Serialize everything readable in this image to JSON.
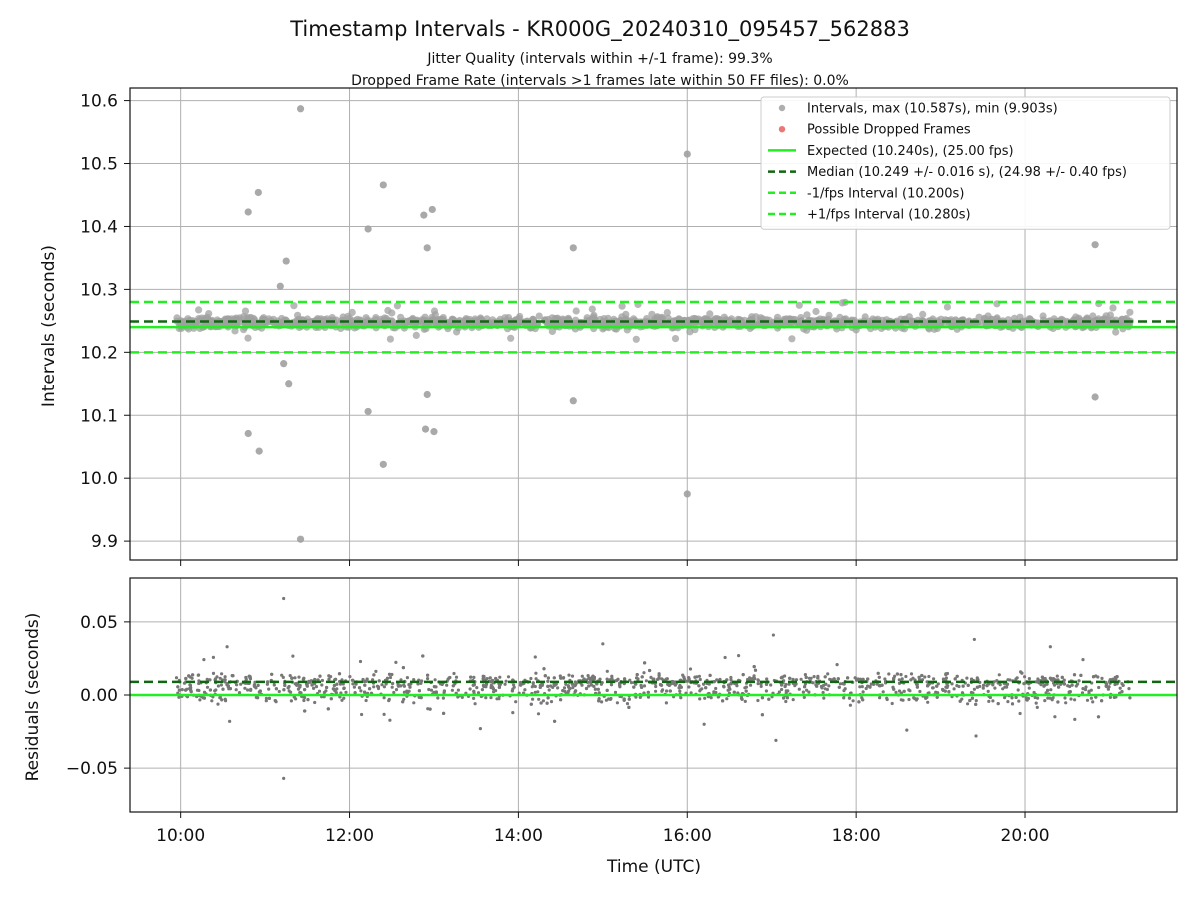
{
  "title": "Timestamp Intervals - KR000G_20240310_095457_562883",
  "subtitle1": "Jitter Quality (intervals within +/-1 frame): 99.3%",
  "subtitle2": "Dropped Frame Rate (intervals >1 frames late within 50 FF files): 0.0%",
  "colors": {
    "intervals": "#a0a0a0",
    "dropped": "#e86060",
    "expected": "#22ee22",
    "median": "#116611",
    "fps_interval": "#22ee22",
    "residuals": "#777777",
    "grid": "#b0b0b0"
  },
  "chart_data": [
    {
      "type": "scatter",
      "name": "intervals-panel",
      "ylabel": "Intervals (seconds)",
      "xlim_hours": [
        9.4,
        21.8
      ],
      "ylim": [
        9.87,
        10.62
      ],
      "yticks": [
        9.9,
        10.0,
        10.1,
        10.2,
        10.3,
        10.4,
        10.5,
        10.6
      ],
      "ytick_labels": [
        "9.9",
        "10.0",
        "10.1",
        "10.2",
        "10.3",
        "10.4",
        "10.5",
        "10.6"
      ],
      "legend_position": "top-right",
      "legend": [
        {
          "label": "Intervals, max (10.587s), min (9.903s)",
          "kind": "dot",
          "color": "#a0a0a0"
        },
        {
          "label": "Possible Dropped Frames",
          "kind": "dot",
          "color": "#e86060"
        },
        {
          "label": "Expected (10.240s), (25.00 fps)",
          "kind": "solid",
          "color": "#22ee22"
        },
        {
          "label": "Median (10.249 +/- 0.016 s), (24.98 +/- 0.40 fps)",
          "kind": "dashed",
          "color": "#116611"
        },
        {
          "label": "-1/fps Interval (10.200s)",
          "kind": "dashed",
          "color": "#22ee22"
        },
        {
          "label": "+1/fps Interval (10.280s)",
          "kind": "dashed",
          "color": "#22ee22"
        }
      ],
      "reference_lines": {
        "expected": 10.24,
        "median": 10.249,
        "minus_fps": 10.2,
        "plus_fps": 10.28
      },
      "core_band": {
        "x_start_hours": 9.95,
        "x_end_hours": 21.25,
        "center": 10.247,
        "spread": 0.006
      },
      "outliers": [
        {
          "x": 10.8,
          "y": 10.423
        },
        {
          "x": 10.92,
          "y": 10.454
        },
        {
          "x": 11.25,
          "y": 10.345
        },
        {
          "x": 11.18,
          "y": 10.305
        },
        {
          "x": 11.42,
          "y": 10.587
        },
        {
          "x": 12.22,
          "y": 10.396
        },
        {
          "x": 12.4,
          "y": 10.466
        },
        {
          "x": 12.88,
          "y": 10.418
        },
        {
          "x": 12.98,
          "y": 10.427
        },
        {
          "x": 12.92,
          "y": 10.366
        },
        {
          "x": 14.65,
          "y": 10.366
        },
        {
          "x": 16.0,
          "y": 10.515
        },
        {
          "x": 20.83,
          "y": 10.371
        },
        {
          "x": 11.22,
          "y": 10.182
        },
        {
          "x": 11.28,
          "y": 10.15
        },
        {
          "x": 10.8,
          "y": 10.071
        },
        {
          "x": 10.93,
          "y": 10.043
        },
        {
          "x": 12.22,
          "y": 10.106
        },
        {
          "x": 12.4,
          "y": 10.022
        },
        {
          "x": 12.92,
          "y": 10.133
        },
        {
          "x": 12.9,
          "y": 10.078
        },
        {
          "x": 13.0,
          "y": 10.074
        },
        {
          "x": 14.65,
          "y": 10.123
        },
        {
          "x": 16.0,
          "y": 9.975
        },
        {
          "x": 20.83,
          "y": 10.129
        },
        {
          "x": 11.42,
          "y": 9.903
        }
      ]
    },
    {
      "type": "scatter",
      "name": "residuals-panel",
      "xlabel": "Time (UTC)",
      "ylabel": "Residuals (seconds)",
      "xlim_hours": [
        9.4,
        21.8
      ],
      "ylim": [
        -0.08,
        0.08
      ],
      "yticks": [
        -0.05,
        0.0,
        0.05
      ],
      "ytick_labels": [
        "−0.05",
        "0.00",
        "0.05"
      ],
      "xticks_hours": [
        10,
        12,
        14,
        16,
        18,
        20
      ],
      "xtick_labels": [
        "10:00",
        "12:00",
        "14:00",
        "16:00",
        "18:00",
        "20:00"
      ],
      "reference_lines": {
        "zero": 0.0,
        "median": 0.009
      },
      "band": {
        "x_start_hours": 9.95,
        "x_end_hours": 21.25,
        "upper_center": 0.009,
        "lower_center": 0.0,
        "spread": 0.004
      },
      "outliers": [
        {
          "x": 11.22,
          "y": 0.066
        },
        {
          "x": 11.22,
          "y": -0.057
        },
        {
          "x": 17.02,
          "y": 0.041
        },
        {
          "x": 17.05,
          "y": -0.031
        },
        {
          "x": 19.4,
          "y": 0.038
        },
        {
          "x": 19.42,
          "y": -0.028
        },
        {
          "x": 15.0,
          "y": 0.035
        },
        {
          "x": 13.55,
          "y": -0.023
        },
        {
          "x": 10.55,
          "y": 0.033
        },
        {
          "x": 10.58,
          "y": -0.018
        },
        {
          "x": 20.3,
          "y": 0.033
        },
        {
          "x": 18.6,
          "y": -0.024
        },
        {
          "x": 16.2,
          "y": -0.02
        },
        {
          "x": 14.2,
          "y": 0.026
        }
      ]
    }
  ]
}
